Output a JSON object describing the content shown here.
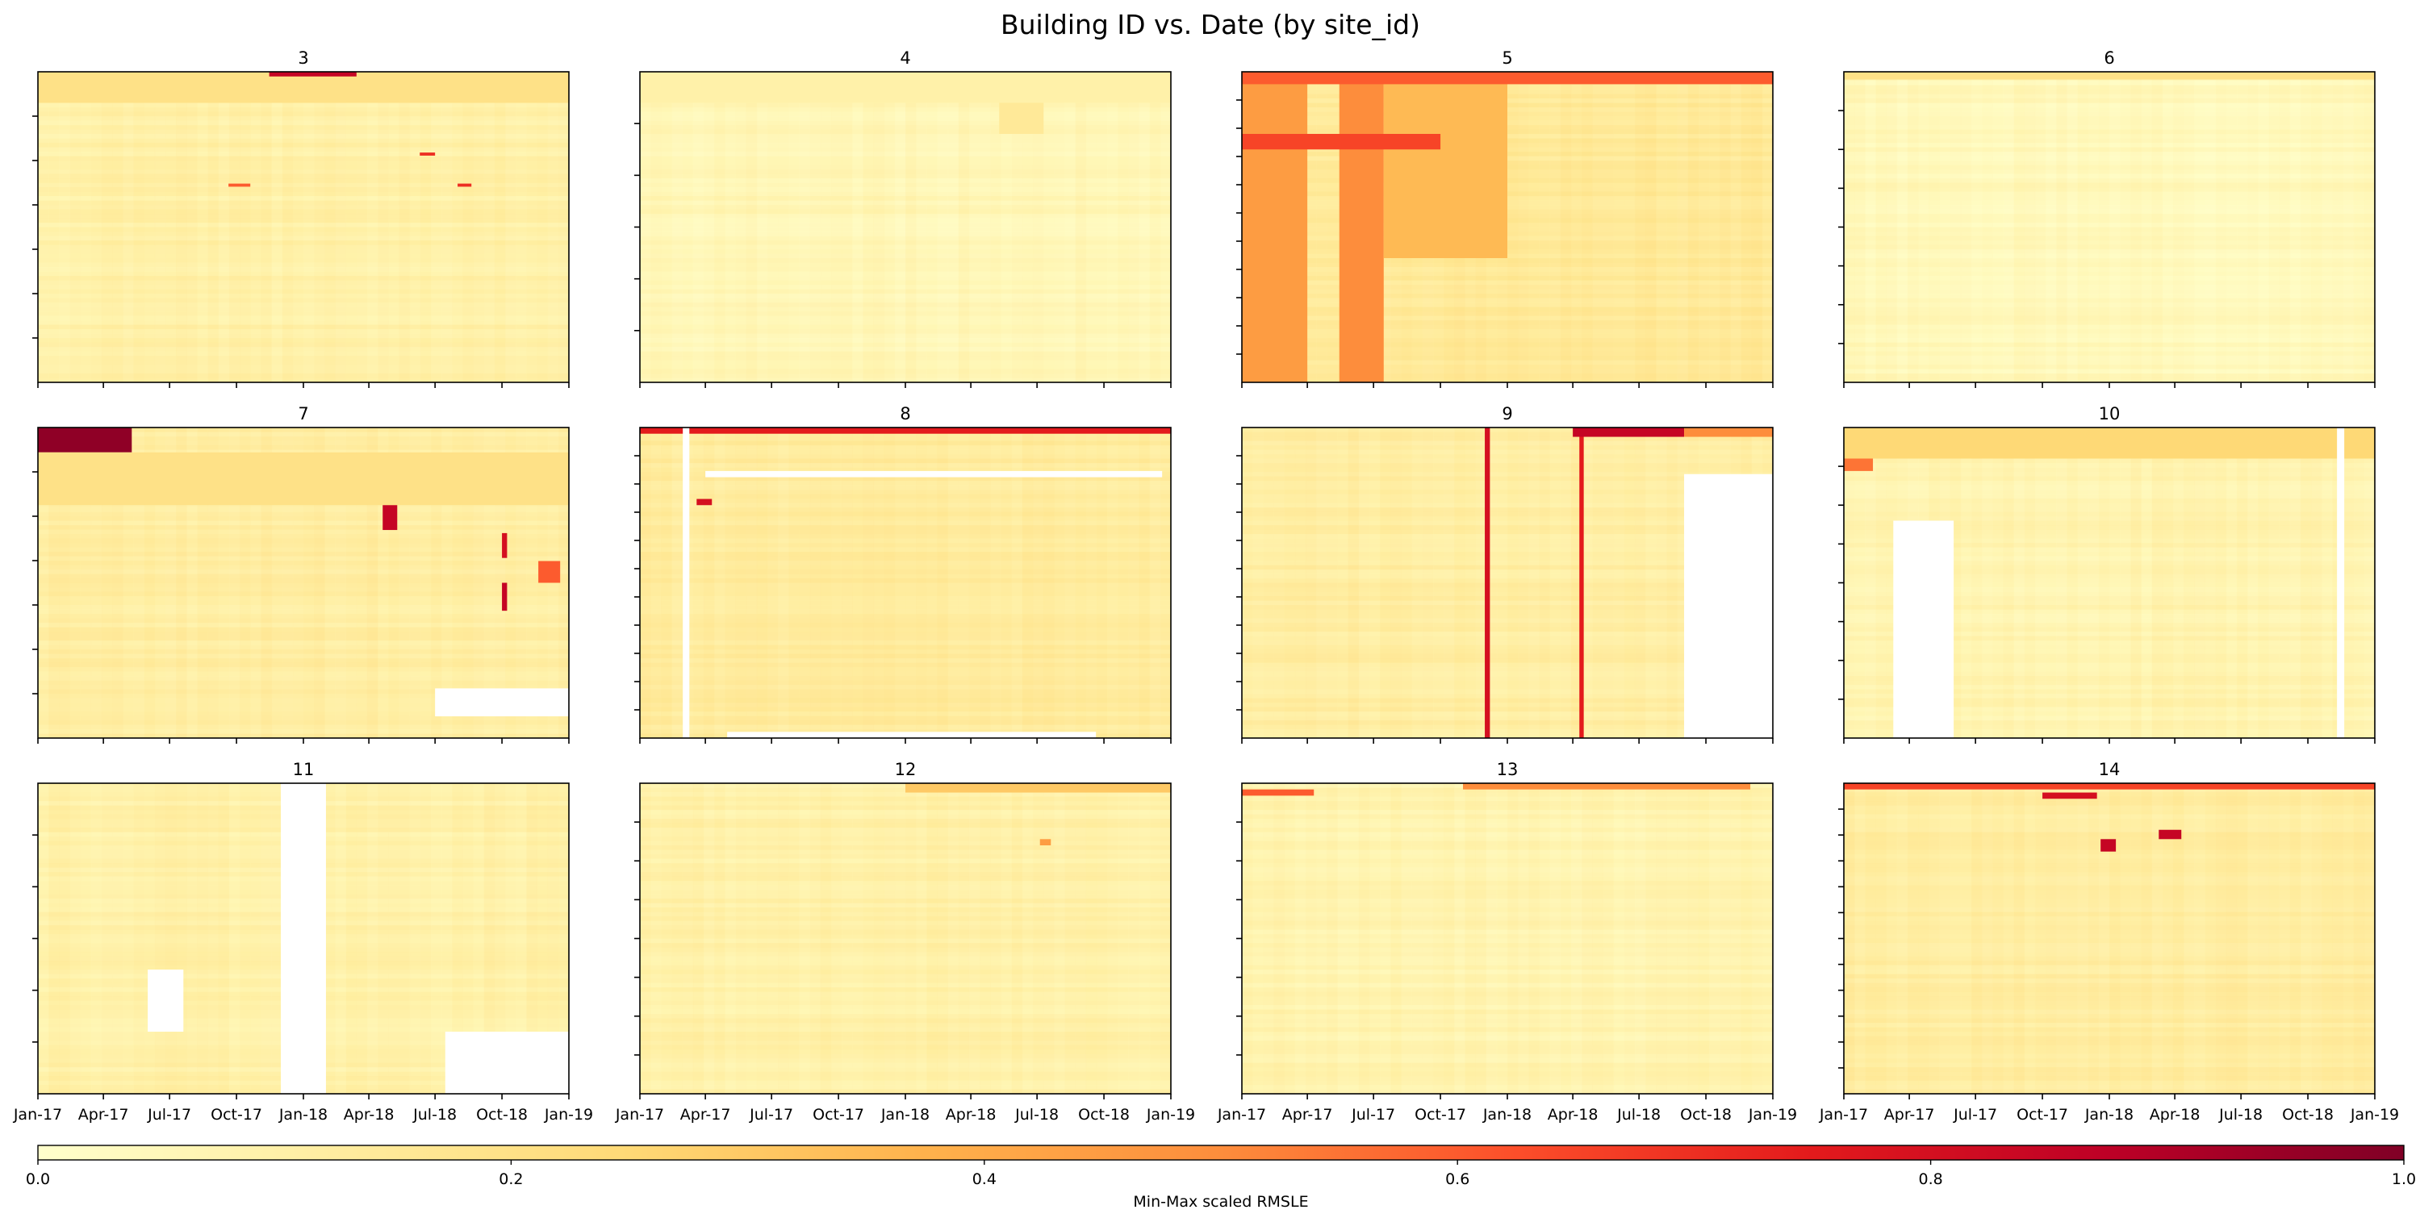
{
  "chart_data": {
    "type": "heatmap",
    "title": "Building ID vs. Date (by site_id)",
    "xlabel": "",
    "ylabel": "",
    "x_tick_labels": [
      "Jan-17",
      "Apr-17",
      "Jul-17",
      "Oct-17",
      "Jan-18",
      "Apr-18",
      "Jul-18",
      "Oct-18",
      "Jan-19"
    ],
    "x_range": [
      "2017-01-01",
      "2019-01-01"
    ],
    "colormap": {
      "name": "YlOrRd",
      "stops": [
        "#ffffcc",
        "#ffeda0",
        "#fed976",
        "#feb24c",
        "#fd8d3c",
        "#fc4e2a",
        "#e31a1c",
        "#bd0026",
        "#800026"
      ]
    },
    "colorbar": {
      "label": "Min-Max scaled RMSLE",
      "range": [
        0.0,
        1.0
      ],
      "tick_labels": [
        "0.0",
        "0.2",
        "0.4",
        "0.6",
        "0.8",
        "1.0"
      ],
      "orientation": "horizontal",
      "placement": "bottom"
    },
    "panels": [
      {
        "site_id": "3",
        "y_ticks": 6,
        "base_level": 0.1,
        "features": [
          {
            "x": [
              "2017-01-01",
              "2019-01-01"
            ],
            "y": [
              0.0,
              0.1
            ],
            "value": 0.2
          },
          {
            "x": [
              "2017-11-15",
              "2018-03-15"
            ],
            "y": [
              0.0,
              0.015
            ],
            "value": 0.85
          },
          {
            "x": [
              "2017-09-20",
              "2017-10-20"
            ],
            "y": [
              0.36,
              0.37
            ],
            "value": 0.6
          },
          {
            "x": [
              "2018-08-01",
              "2018-08-20"
            ],
            "y": [
              0.36,
              0.37
            ],
            "value": 0.7
          },
          {
            "x": [
              "2018-06-10",
              "2018-07-01"
            ],
            "y": [
              0.26,
              0.27
            ],
            "value": 0.7
          }
        ]
      },
      {
        "site_id": "4",
        "y_ticks": 5,
        "base_level": 0.06,
        "features": [
          {
            "x": [
              "2018-05-10",
              "2018-07-10"
            ],
            "y": [
              0.1,
              0.2
            ],
            "value": 0.15
          },
          {
            "x": [
              "2017-01-01",
              "2019-01-01"
            ],
            "y": [
              0.0,
              0.1
            ],
            "value": 0.1
          }
        ]
      },
      {
        "site_id": "5",
        "y_ticks": 10,
        "base_level": 0.15,
        "features": [
          {
            "x": [
              "2017-01-01",
              "2017-04-01"
            ],
            "y": [
              0.0,
              1.0
            ],
            "value": 0.45
          },
          {
            "x": [
              "2017-05-15",
              "2017-07-15"
            ],
            "y": [
              0.0,
              1.0
            ],
            "value": 0.5
          },
          {
            "x": [
              "2017-07-15",
              "2018-01-01"
            ],
            "y": [
              0.0,
              0.6
            ],
            "value": 0.35
          },
          {
            "x": [
              "2017-01-01",
              "2019-01-01"
            ],
            "y": [
              0.0,
              0.04
            ],
            "value": 0.6
          },
          {
            "x": [
              "2017-01-01",
              "2017-10-01"
            ],
            "y": [
              0.2,
              0.25
            ],
            "value": 0.65
          }
        ]
      },
      {
        "site_id": "6",
        "y_ticks": 7,
        "base_level": 0.05,
        "features": [
          {
            "x": [
              "2017-01-01",
              "2019-01-01"
            ],
            "y": [
              0.0,
              0.025
            ],
            "value": 0.2
          }
        ]
      },
      {
        "site_id": "7",
        "y_ticks": 6,
        "base_level": 0.12,
        "features": [
          {
            "x": [
              "2017-01-01",
              "2017-05-10"
            ],
            "y": [
              0.0,
              0.08
            ],
            "value": 0.97
          },
          {
            "x": [
              "2017-01-01",
              "2019-01-01"
            ],
            "y": [
              0.08,
              0.25
            ],
            "value": 0.2
          },
          {
            "x": [
              "2018-04-20",
              "2018-05-10"
            ],
            "y": [
              0.25,
              0.33
            ],
            "value": 0.85
          },
          {
            "x": [
              "2018-10-01",
              "2018-10-08"
            ],
            "y": [
              0.34,
              0.42
            ],
            "value": 0.8
          },
          {
            "x": [
              "2018-11-20",
              "2018-12-20"
            ],
            "y": [
              0.43,
              0.5
            ],
            "value": 0.6
          },
          {
            "x": [
              "2018-10-01",
              "2018-10-08"
            ],
            "y": [
              0.5,
              0.59
            ],
            "value": 0.85
          },
          {
            "x": [
              "2018-07-01",
              "2019-01-01"
            ],
            "y": [
              0.84,
              0.93
            ],
            "value": null
          }
        ]
      },
      {
        "site_id": "8",
        "y_ticks": 10,
        "base_level": 0.13,
        "features": [
          {
            "x": [
              "2017-01-01",
              "2019-01-01"
            ],
            "y": [
              0.0,
              0.02
            ],
            "value": 0.75
          },
          {
            "x": [
              "2017-03-01",
              "2017-03-10"
            ],
            "y": [
              0.0,
              1.0
            ],
            "value": null
          },
          {
            "x": [
              "2017-03-20",
              "2017-04-10"
            ],
            "y": [
              0.23,
              0.25
            ],
            "value": 0.8
          },
          {
            "x": [
              "2017-04-01",
              "2018-12-20"
            ],
            "y": [
              0.14,
              0.16
            ],
            "value": null
          },
          {
            "x": [
              "2017-05-01",
              "2018-09-20"
            ],
            "y": [
              0.98,
              1.0
            ],
            "value": null
          }
        ]
      },
      {
        "site_id": "9",
        "y_ticks": 10,
        "base_level": 0.12,
        "features": [
          {
            "x": [
              "2017-12-01",
              "2017-12-08"
            ],
            "y": [
              0.0,
              1.0
            ],
            "value": 0.8
          },
          {
            "x": [
              "2018-04-10",
              "2018-04-16"
            ],
            "y": [
              0.0,
              1.0
            ],
            "value": 0.75
          },
          {
            "x": [
              "2018-04-01",
              "2018-09-01"
            ],
            "y": [
              0.0,
              0.03
            ],
            "value": 0.85
          },
          {
            "x": [
              "2018-09-01",
              "2019-01-01"
            ],
            "y": [
              0.0,
              0.03
            ],
            "value": 0.5
          },
          {
            "x": [
              "2018-09-01",
              "2019-01-01"
            ],
            "y": [
              0.15,
              1.0
            ],
            "value": null
          }
        ]
      },
      {
        "site_id": "10",
        "y_ticks": 7,
        "base_level": 0.08,
        "features": [
          {
            "x": [
              "2017-01-01",
              "2019-01-01"
            ],
            "y": [
              0.0,
              0.1
            ],
            "value": 0.25
          },
          {
            "x": [
              "2017-03-10",
              "2017-06-01"
            ],
            "y": [
              0.3,
              1.0
            ],
            "value": null
          },
          {
            "x": [
              "2017-01-01",
              "2017-02-10"
            ],
            "y": [
              0.1,
              0.14
            ],
            "value": 0.55
          },
          {
            "x": [
              "2018-11-10",
              "2018-11-20"
            ],
            "y": [
              0.0,
              1.0
            ],
            "value": null
          }
        ]
      },
      {
        "site_id": "11",
        "y_ticks": 5,
        "base_level": 0.1,
        "features": [
          {
            "x": [
              "2017-12-01",
              "2018-02-01"
            ],
            "y": [
              0.0,
              1.0
            ],
            "value": null
          },
          {
            "x": [
              "2017-06-01",
              "2017-07-20"
            ],
            "y": [
              0.6,
              0.8
            ],
            "value": null
          },
          {
            "x": [
              "2018-07-15",
              "2019-01-01"
            ],
            "y": [
              0.8,
              1.0
            ],
            "value": null
          }
        ]
      },
      {
        "site_id": "12",
        "y_ticks": 7,
        "base_level": 0.1,
        "features": [
          {
            "x": [
              "2018-01-01",
              "2019-01-01"
            ],
            "y": [
              0.0,
              0.03
            ],
            "value": 0.3
          },
          {
            "x": [
              "2018-07-05",
              "2018-07-20"
            ],
            "y": [
              0.18,
              0.2
            ],
            "value": 0.45
          }
        ]
      },
      {
        "site_id": "13",
        "y_ticks": 7,
        "base_level": 0.08,
        "features": [
          {
            "x": [
              "2017-01-01",
              "2017-04-10"
            ],
            "y": [
              0.02,
              0.04
            ],
            "value": 0.6
          },
          {
            "x": [
              "2017-11-01",
              "2018-12-01"
            ],
            "y": [
              0.0,
              0.02
            ],
            "value": 0.5
          }
        ]
      },
      {
        "site_id": "14",
        "y_ticks": 11,
        "base_level": 0.12,
        "features": [
          {
            "x": [
              "2017-01-01",
              "2019-01-01"
            ],
            "y": [
              0.0,
              0.02
            ],
            "value": 0.65
          },
          {
            "x": [
              "2017-10-01",
              "2017-12-15"
            ],
            "y": [
              0.03,
              0.05
            ],
            "value": 0.8
          },
          {
            "x": [
              "2017-12-20",
              "2018-01-10"
            ],
            "y": [
              0.18,
              0.22
            ],
            "value": 0.85
          },
          {
            "x": [
              "2018-03-10",
              "2018-04-10"
            ],
            "y": [
              0.15,
              0.18
            ],
            "value": 0.85
          }
        ]
      }
    ]
  }
}
